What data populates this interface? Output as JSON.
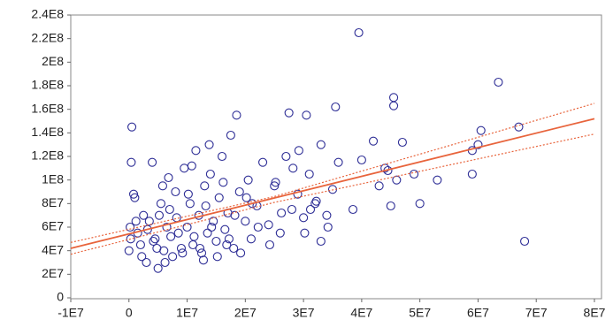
{
  "chart_data": {
    "type": "scatter",
    "point_color": "#2e2e96",
    "line_color": "#e8643c",
    "xlim": [
      -10000000.0,
      80000000.0
    ],
    "ylim": [
      0,
      240000000.0
    ],
    "xticks": [
      {
        "value": -10000000.0,
        "label": "-1E7"
      },
      0,
      {
        "value": 10000000.0,
        "label": "1E7"
      },
      {
        "value": 20000000.0,
        "label": "2E7"
      },
      {
        "value": 30000000.0,
        "label": "3E7"
      },
      {
        "value": 40000000.0,
        "label": "4E7"
      },
      {
        "value": 50000000.0,
        "label": "5E7"
      },
      {
        "value": 60000000.0,
        "label": "6E7"
      },
      {
        "value": 70000000.0,
        "label": "7E7"
      },
      {
        "value": 80000000.0,
        "label": "8E7"
      }
    ],
    "yticks": [
      0,
      {
        "value": 20000000.0,
        "label": "2E7"
      },
      {
        "value": 40000000.0,
        "label": "4E7"
      },
      {
        "value": 60000000.0,
        "label": "6E7"
      },
      {
        "value": 80000000.0,
        "label": "8E7"
      },
      {
        "value": 100000000.0,
        "label": "1E8"
      },
      {
        "value": 120000000.0,
        "label": "1.2E8"
      },
      {
        "value": 140000000.0,
        "label": "1.4E8"
      },
      {
        "value": 160000000.0,
        "label": "1.6E8"
      },
      {
        "value": 180000000.0,
        "label": "1.8E8"
      },
      {
        "value": 200000000.0,
        "label": "2E8"
      },
      {
        "value": 220000000.0,
        "label": "2.2E8"
      },
      {
        "value": 240000000.0,
        "label": "2.4E8"
      }
    ],
    "x": [
      39500000.0,
      63500000.0,
      68000000.0,
      67000000.0,
      45500000.0,
      45500000.0,
      35500000.0,
      18500000.0,
      27500000.0,
      30500000.0,
      500000.0,
      47000000.0,
      42000000.0,
      53000000.0,
      59000000.0,
      60500000.0,
      60000000.0,
      59000000.0,
      40000000.0,
      50000000.0,
      45000000.0,
      38500000.0,
      33000000.0,
      49000000.0,
      44000000.0,
      43000000.0,
      46000000.0,
      44500000.0,
      36000000.0,
      33000000.0,
      0,
      200000.0,
      400000.0,
      1000000.0,
      1500000.0,
      2000000.0,
      2500000.0,
      3000000.0,
      3500000.0,
      4000000.0,
      4500000.0,
      5000000.0,
      5500000.0,
      6000000.0,
      6500000.0,
      7000000.0,
      7500000.0,
      8000000.0,
      8500000.0,
      9000000.0,
      9500000.0,
      10000000.0,
      10500000.0,
      11000000.0,
      11500000.0,
      12000000.0,
      12500000.0,
      13000000.0,
      13500000.0,
      14000000.0,
      14500000.0,
      15000000.0,
      15500000.0,
      16000000.0,
      16500000.0,
      17000000.0,
      17500000.0,
      18000000.0,
      19000000.0,
      20000000.0,
      20500000.0,
      21000000.0,
      22000000.0,
      23000000.0,
      24000000.0,
      25000000.0,
      26000000.0,
      27000000.0,
      28000000.0,
      29000000.0,
      30000000.0,
      31000000.0,
      32000000.0,
      34000000.0,
      35000000.0,
      300000.0,
      1200000.0,
      2200000.0,
      3200000.0,
      4200000.0,
      5200000.0,
      6200000.0,
      7200000.0,
      8200000.0,
      9200000.0,
      10200000.0,
      11200000.0,
      12200000.0,
      13200000.0,
      14200000.0,
      15200000.0,
      16200000.0,
      17200000.0,
      18200000.0,
      19200000.0,
      20200000.0,
      22200000.0,
      24200000.0,
      26200000.0,
      28200000.0,
      30200000.0,
      32200000.0,
      34200000.0,
      800000.0,
      4800000.0,
      5800000.0,
      10800000.0,
      13800000.0,
      21200000.0,
      25200000.0,
      29200000.0,
      31200000.0,
      16800000.0,
      6800000.0,
      12800000.0
    ],
    "y": [
      225000000.0,
      183000000.0,
      48000000.0,
      145000000.0,
      170000000.0,
      163000000.0,
      162000000.0,
      155000000.0,
      157000000.0,
      155000000.0,
      145000000.0,
      132000000.0,
      133000000.0,
      100000000.0,
      105000000.0,
      142000000.0,
      130000000.0,
      125000000.0,
      117000000.0,
      80000000.0,
      78000000.0,
      75000000.0,
      48000000.0,
      105000000.0,
      110000000.0,
      95000000.0,
      100000000.0,
      108000000.0,
      115000000.0,
      130000000.0,
      40000000.0,
      60000000.0,
      115000000.0,
      85000000.0,
      55000000.0,
      45000000.0,
      70000000.0,
      30000000.0,
      65000000.0,
      115000000.0,
      50000000.0,
      25000000.0,
      80000000.0,
      40000000.0,
      60000000.0,
      75000000.0,
      35000000.0,
      90000000.0,
      55000000.0,
      42000000.0,
      110000000.0,
      60000000.0,
      80000000.0,
      45000000.0,
      125000000.0,
      70000000.0,
      38000000.0,
      95000000.0,
      55000000.0,
      105000000.0,
      65000000.0,
      48000000.0,
      85000000.0,
      120000000.0,
      58000000.0,
      72000000.0,
      138000000.0,
      42000000.0,
      90000000.0,
      65000000.0,
      100000000.0,
      50000000.0,
      78000000.0,
      115000000.0,
      62000000.0,
      95000000.0,
      55000000.0,
      120000000.0,
      75000000.0,
      88000000.0,
      68000000.0,
      105000000.0,
      80000000.0,
      70000000.0,
      92000000.0,
      50000000.0,
      65000000.0,
      35000000.0,
      58000000.0,
      48000000.0,
      70000000.0,
      30000000.0,
      52000000.0,
      68000000.0,
      38000000.0,
      88000000.0,
      52000000.0,
      42000000.0,
      78000000.0,
      60000000.0,
      35000000.0,
      98000000.0,
      50000000.0,
      70000000.0,
      38000000.0,
      85000000.0,
      60000000.0,
      45000000.0,
      72000000.0,
      110000000.0,
      55000000.0,
      82000000.0,
      60000000.0,
      88000000.0,
      42000000.0,
      95000000.0,
      112000000.0,
      130000000.0,
      80000000.0,
      98000000.0,
      125000000.0,
      75000000.0,
      45000000.0,
      102000000.0,
      32000000.0
    ],
    "fit": {
      "x": [
        -10000000.0,
        80000000.0
      ],
      "y": [
        42000000.0,
        152000000.0
      ]
    },
    "fit_upper": {
      "x": [
        -10000000.0,
        25000000.0,
        80000000.0
      ],
      "y": [
        47000000.0,
        86000000.0,
        165000000.0
      ]
    },
    "fit_lower": {
      "x": [
        -10000000.0,
        25000000.0,
        80000000.0
      ],
      "y": [
        37000000.0,
        81000000.0,
        139000000.0
      ]
    }
  }
}
